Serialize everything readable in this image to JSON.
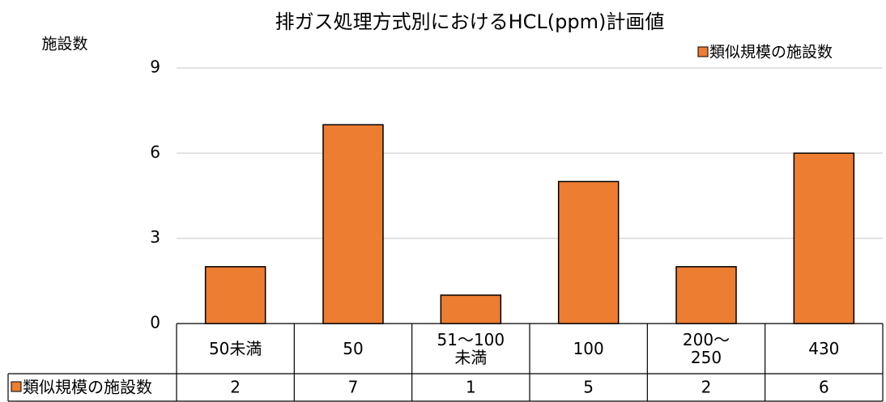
{
  "chart_data": {
    "type": "bar",
    "title": "排ガス処理方式別におけるHCL(ppm)計画値",
    "y_label": "施設数",
    "categories": [
      "50未満",
      "50",
      "51～100未満",
      "100",
      "200～250",
      "430"
    ],
    "series": [
      {
        "name": "類似規模の施設数",
        "color": "#ed7d31",
        "values": [
          2,
          7,
          1,
          5,
          2,
          6
        ]
      }
    ],
    "ylim": [
      0,
      9
    ],
    "yticks": [
      0,
      3,
      6,
      9
    ],
    "grid": true,
    "legend": "top-right",
    "data_table": true
  }
}
